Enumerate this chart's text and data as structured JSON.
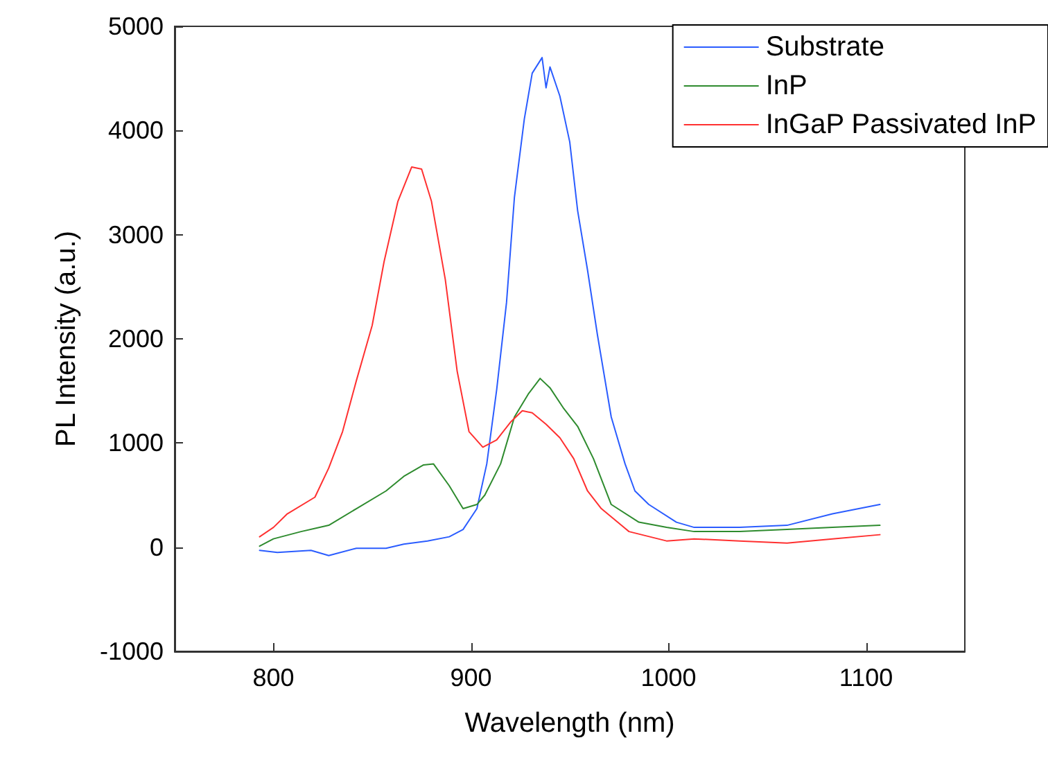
{
  "chart_data": {
    "type": "line",
    "xlabel": "Wavelength (nm)",
    "ylabel": "PL Intensity (a.u.)",
    "xlim": [
      750,
      1150
    ],
    "xticks": [
      800,
      900,
      1000,
      1100
    ],
    "ylim": [
      -1000,
      5000
    ],
    "yticks": [
      -1000,
      0,
      1000,
      2000,
      3000,
      4000,
      5000
    ],
    "grid": false,
    "legend": "top right",
    "line_style": "solid",
    "marker": "none",
    "series": [
      {
        "name": "Substrate",
        "color": "#2a5cff",
        "x": [
          793,
          802,
          819,
          828,
          842,
          857,
          866,
          878,
          889,
          896,
          903,
          908,
          913,
          918,
          922,
          927,
          931,
          936,
          938,
          940,
          945,
          950,
          954,
          959,
          964,
          971,
          978,
          983,
          990,
          1004,
          1013,
          1036,
          1060,
          1083,
          1107
        ],
        "values": [
          -30,
          -50,
          -30,
          -80,
          -10,
          -10,
          30,
          60,
          100,
          170,
          370,
          800,
          1510,
          2350,
          3360,
          4110,
          4550,
          4700,
          4410,
          4610,
          4330,
          3890,
          3230,
          2660,
          2040,
          1250,
          800,
          540,
          410,
          240,
          190,
          190,
          210,
          320,
          410
        ]
      },
      {
        "name": "InP",
        "color": "#2e8b2e",
        "x": [
          793,
          800,
          814,
          828,
          842,
          857,
          866,
          876,
          881,
          889,
          896,
          903,
          907,
          915,
          922,
          929,
          935,
          940,
          947,
          954,
          962,
          971,
          985,
          999,
          1013,
          1036,
          1060,
          1083,
          1107
        ],
        "values": [
          10,
          80,
          150,
          210,
          370,
          540,
          680,
          790,
          800,
          590,
          370,
          410,
          500,
          800,
          1250,
          1470,
          1620,
          1530,
          1330,
          1160,
          850,
          410,
          240,
          190,
          150,
          150,
          170,
          190,
          210
        ]
      },
      {
        "name": "InGaP Passivated InP",
        "color": "#ff3030",
        "x": [
          793,
          800,
          807,
          821,
          828,
          835,
          842,
          850,
          856,
          863,
          870,
          875,
          880,
          887,
          893,
          899,
          906,
          913,
          920,
          926,
          931,
          938,
          945,
          952,
          959,
          966,
          980,
          999,
          1013,
          1036,
          1060,
          1083,
          1107
        ],
        "values": [
          100,
          190,
          320,
          480,
          760,
          1110,
          1600,
          2130,
          2740,
          3320,
          3650,
          3630,
          3320,
          2570,
          1690,
          1110,
          960,
          1030,
          1200,
          1310,
          1290,
          1180,
          1050,
          850,
          540,
          370,
          150,
          60,
          80,
          60,
          40,
          80,
          120
        ]
      }
    ]
  }
}
